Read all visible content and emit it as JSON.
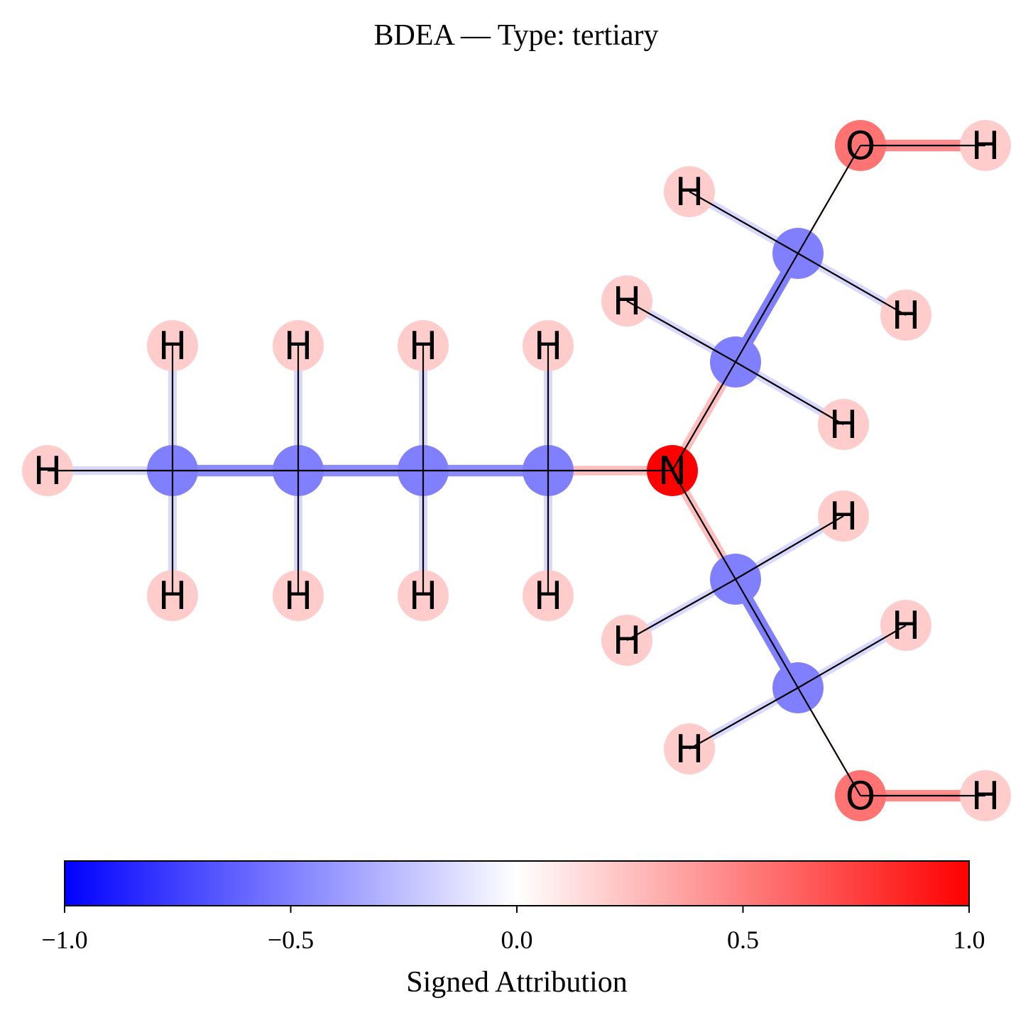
{
  "title": "BDEA — Type: tertiary",
  "colorbar": {
    "label": "Signed Attribution",
    "min": -1.0,
    "max": 1.0,
    "ticks": [
      {
        "value": -1.0,
        "label": "−1.0"
      },
      {
        "value": -0.5,
        "label": "−0.5"
      },
      {
        "value": 0.0,
        "label": "0.0"
      },
      {
        "value": 0.5,
        "label": "0.5"
      },
      {
        "value": 1.0,
        "label": "1.0"
      }
    ],
    "colors": {
      "negative": "#0000ff",
      "zero": "#ffffff",
      "positive": "#ff0000"
    }
  },
  "molecule": {
    "atoms": [
      {
        "id": "h_terminal",
        "element": "H",
        "attr": 0.2
      },
      {
        "id": "c1",
        "element": "C",
        "attr": -0.5
      },
      {
        "id": "c2",
        "element": "C",
        "attr": -0.5
      },
      {
        "id": "c3",
        "element": "C",
        "attr": -0.5
      },
      {
        "id": "c4",
        "element": "C",
        "attr": -0.5
      },
      {
        "id": "n",
        "element": "N",
        "attr": 1.0
      },
      {
        "id": "c5",
        "element": "C",
        "attr": -0.5
      },
      {
        "id": "c6",
        "element": "C",
        "attr": -0.5
      },
      {
        "id": "o1",
        "element": "O",
        "attr": 0.55
      },
      {
        "id": "ho1",
        "element": "H",
        "attr": 0.2
      },
      {
        "id": "c7",
        "element": "C",
        "attr": -0.5
      },
      {
        "id": "c8",
        "element": "C",
        "attr": -0.5
      },
      {
        "id": "o2",
        "element": "O",
        "attr": 0.55
      },
      {
        "id": "ho2",
        "element": "H",
        "attr": 0.2
      },
      {
        "id": "h1a",
        "element": "H",
        "attr": 0.2
      },
      {
        "id": "h1b",
        "element": "H",
        "attr": 0.2
      },
      {
        "id": "h2a",
        "element": "H",
        "attr": 0.2
      },
      {
        "id": "h2b",
        "element": "H",
        "attr": 0.2
      },
      {
        "id": "h3a",
        "element": "H",
        "attr": 0.2
      },
      {
        "id": "h3b",
        "element": "H",
        "attr": 0.2
      },
      {
        "id": "h4a",
        "element": "H",
        "attr": 0.2
      },
      {
        "id": "h4b",
        "element": "H",
        "attr": 0.2
      },
      {
        "id": "h5a",
        "element": "H",
        "attr": 0.2
      },
      {
        "id": "h5b",
        "element": "H",
        "attr": 0.2
      },
      {
        "id": "h6a",
        "element": "H",
        "attr": 0.2
      },
      {
        "id": "h6b",
        "element": "H",
        "attr": 0.2
      },
      {
        "id": "h7a",
        "element": "H",
        "attr": 0.2
      },
      {
        "id": "h7b",
        "element": "H",
        "attr": 0.2
      },
      {
        "id": "h8a",
        "element": "H",
        "attr": 0.2
      },
      {
        "id": "h8b",
        "element": "H",
        "attr": 0.2
      }
    ],
    "bonds": [
      {
        "a": "h_terminal",
        "b": "c1",
        "attr": -0.15
      },
      {
        "a": "c1",
        "b": "c2",
        "attr": -0.45
      },
      {
        "a": "c2",
        "b": "c3",
        "attr": -0.45
      },
      {
        "a": "c3",
        "b": "c4",
        "attr": -0.45
      },
      {
        "a": "c4",
        "b": "n",
        "attr": 0.25
      },
      {
        "a": "n",
        "b": "c5",
        "attr": 0.25
      },
      {
        "a": "c5",
        "b": "c6",
        "attr": -0.5
      },
      {
        "a": "c6",
        "b": "o1",
        "attr": 0.02
      },
      {
        "a": "o1",
        "b": "ho1",
        "attr": 0.45
      },
      {
        "a": "n",
        "b": "c7",
        "attr": 0.25
      },
      {
        "a": "c7",
        "b": "c8",
        "attr": -0.5
      },
      {
        "a": "c8",
        "b": "o2",
        "attr": 0.02
      },
      {
        "a": "o2",
        "b": "ho2",
        "attr": 0.45
      },
      {
        "a": "c1",
        "b": "h1a",
        "attr": -0.15
      },
      {
        "a": "c1",
        "b": "h1b",
        "attr": -0.15
      },
      {
        "a": "c2",
        "b": "h2a",
        "attr": -0.15
      },
      {
        "a": "c2",
        "b": "h2b",
        "attr": -0.15
      },
      {
        "a": "c3",
        "b": "h3a",
        "attr": -0.15
      },
      {
        "a": "c3",
        "b": "h3b",
        "attr": -0.15
      },
      {
        "a": "c4",
        "b": "h4a",
        "attr": -0.15
      },
      {
        "a": "c4",
        "b": "h4b",
        "attr": -0.15
      },
      {
        "a": "c5",
        "b": "h5a",
        "attr": -0.15
      },
      {
        "a": "c5",
        "b": "h5b",
        "attr": -0.15
      },
      {
        "a": "c6",
        "b": "h6a",
        "attr": -0.15
      },
      {
        "a": "c6",
        "b": "h6b",
        "attr": -0.15
      },
      {
        "a": "c7",
        "b": "h7a",
        "attr": -0.15
      },
      {
        "a": "c7",
        "b": "h7b",
        "attr": -0.15
      },
      {
        "a": "c8",
        "b": "h8a",
        "attr": -0.15
      },
      {
        "a": "c8",
        "b": "h8b",
        "attr": -0.15
      }
    ]
  }
}
